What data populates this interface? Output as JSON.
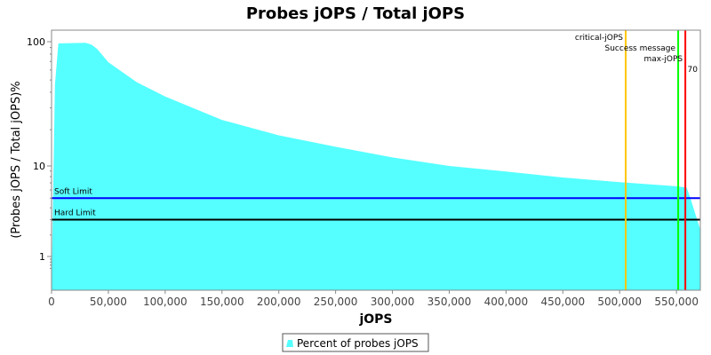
{
  "chart_data": {
    "type": "area",
    "title": "Probes jOPS / Total jOPS",
    "xlabel": "jOPS",
    "ylabel": "(Probes jOPS / Total jOPS)%",
    "xlim": [
      0,
      571000
    ],
    "ylim": [
      0,
      123
    ],
    "y_scale": "log",
    "grid": false,
    "legend_position": "bottom",
    "x_ticks": [
      0,
      50000,
      100000,
      150000,
      200000,
      250000,
      300000,
      350000,
      400000,
      450000,
      500000,
      550000
    ],
    "x_tick_labels": [
      "0",
      "50,000",
      "100,000",
      "150,000",
      "200,000",
      "250,000",
      "300,000",
      "350,000",
      "400,000",
      "450,000",
      "500,000",
      "550,000"
    ],
    "y_ticks": [
      1,
      10,
      100
    ],
    "y_tick_labels": [
      "1",
      "10",
      "100"
    ],
    "series": [
      {
        "name": "Percent of probes jOPS",
        "color": "#55ffff",
        "x": [
          0,
          3000,
          6000,
          30000,
          35000,
          40000,
          50000,
          75000,
          100000,
          150000,
          200000,
          250000,
          300000,
          350000,
          400000,
          450000,
          500000,
          550000,
          559000,
          562000,
          571000
        ],
        "y": [
          0,
          46,
          97,
          98,
          95,
          88,
          69,
          48,
          37,
          24,
          18,
          14.5,
          11.8,
          10,
          8.9,
          7.85,
          7.1,
          6.5,
          6.3,
          5.1,
          2.3
        ]
      }
    ],
    "hlines": [
      {
        "label": "Soft Limit",
        "value": 5,
        "color": "#0000ff"
      },
      {
        "label": "Hard Limit",
        "value": 3,
        "color": "#000000"
      }
    ],
    "vlines": [
      {
        "label": "critical-jOPS",
        "value": 505300,
        "color": "#ffc800"
      },
      {
        "label": "Success message",
        "value": 551500,
        "color": "#00ff00"
      },
      {
        "label": "max-jOPS",
        "value": 557800,
        "color": "#ff0000"
      }
    ],
    "extra_label": "70"
  }
}
